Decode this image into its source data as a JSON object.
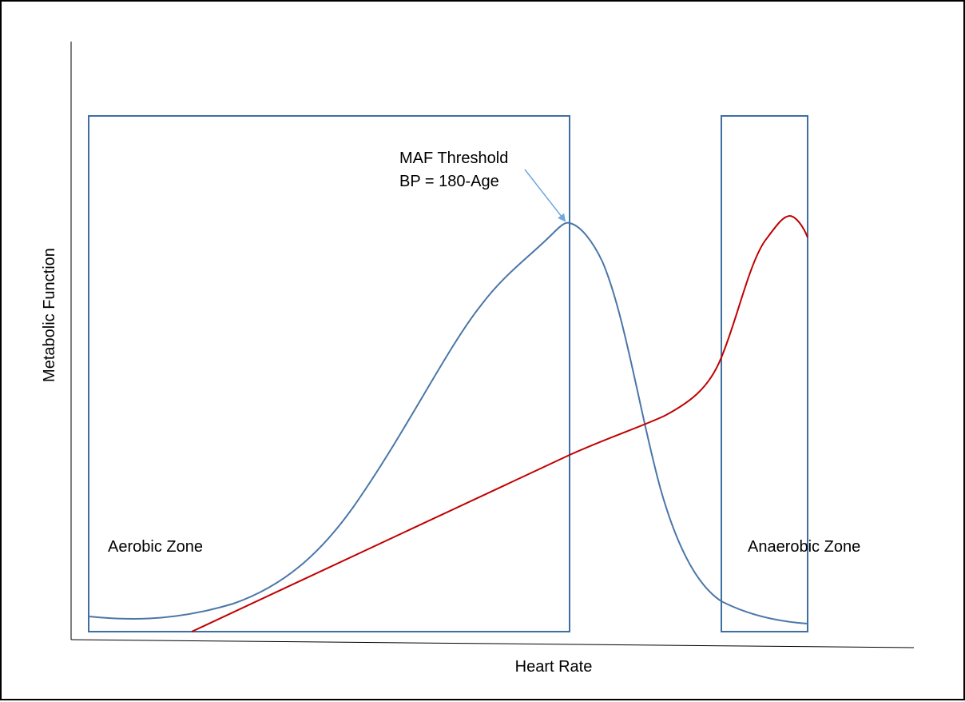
{
  "diagram": {
    "x_axis_label": "Heart Rate",
    "y_axis_label": "Metabolic Function",
    "aerobic_zone_label": "Aerobic Zone",
    "anaerobic_zone_label": "Anaerobic Zone",
    "threshold_label_line1": "MAF Threshold",
    "threshold_label_line2": "BP = 180-Age"
  },
  "colors": {
    "zone_border": "#3E6FA3",
    "aerobic_curve": "#4A76A8",
    "anaerobic_curve": "#C00000",
    "arrow": "#6FA8DC",
    "axis": "#000000"
  }
}
